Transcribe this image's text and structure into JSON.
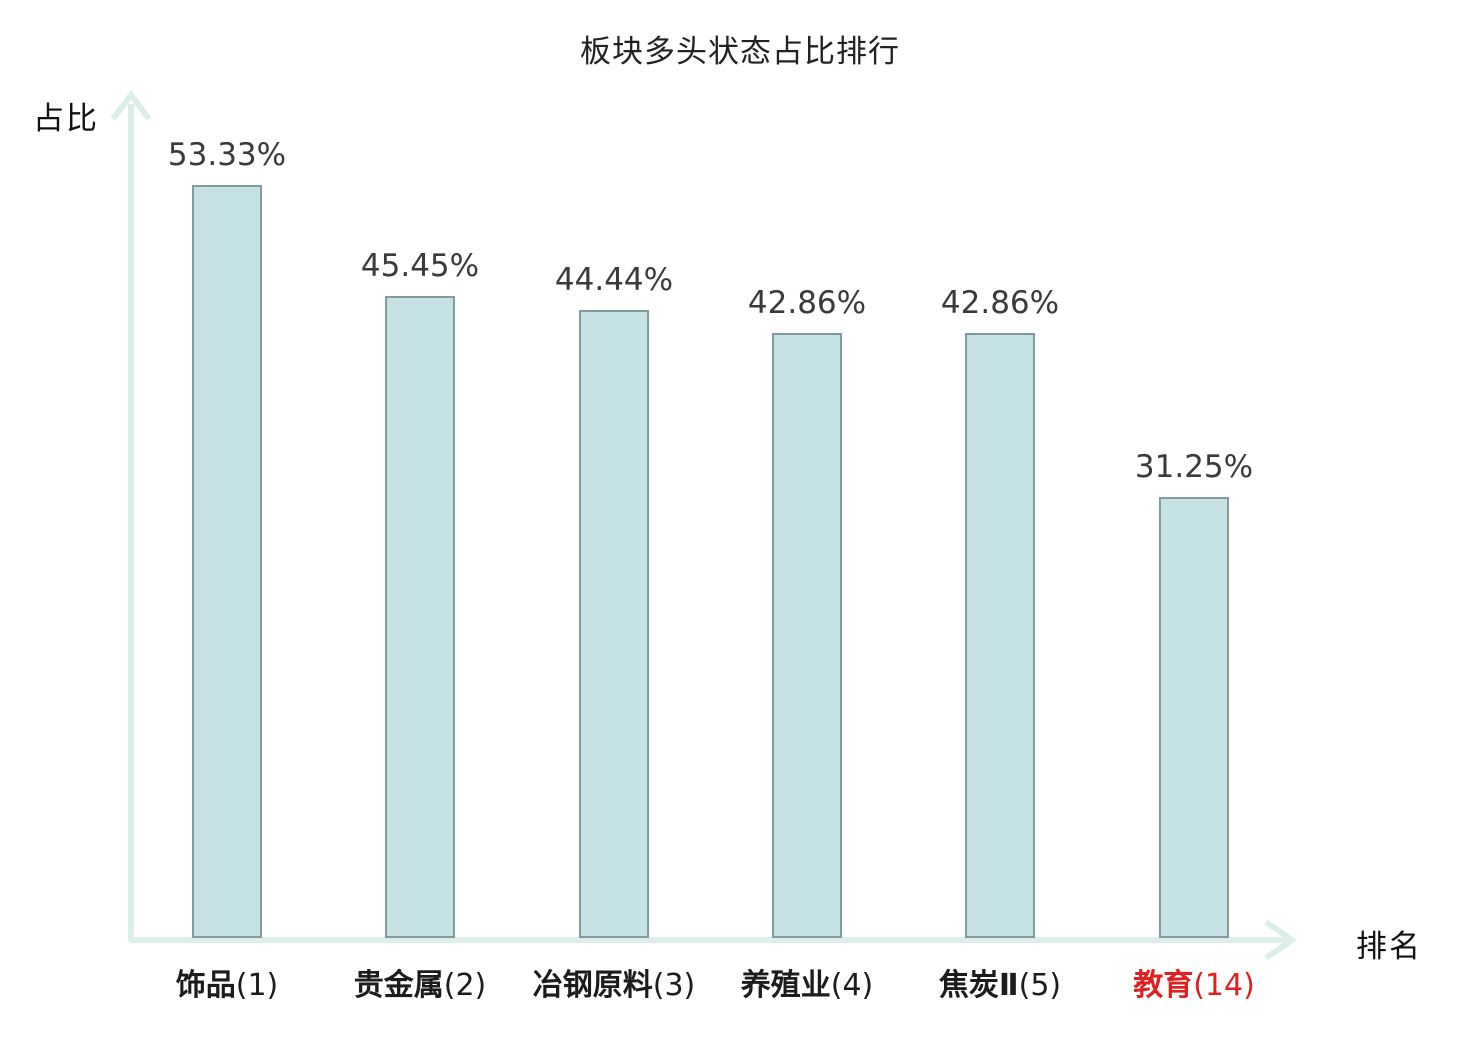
{
  "chart_data": {
    "type": "bar",
    "title": "板块多头状态占比排行",
    "xlabel": "排名",
    "ylabel": "占比",
    "ylim": [
      0,
      60
    ],
    "grid": false,
    "legend": false,
    "categories": [
      "饰品(1)",
      "贵金属(2)",
      "冶钢原料(3)",
      "养殖业(4)",
      "焦炭Ⅱ(5)",
      "教育(14)"
    ],
    "values": [
      53.33,
      45.45,
      44.44,
      42.86,
      42.86,
      31.25
    ],
    "bars": [
      {
        "name": "饰品",
        "rank": "(1)",
        "value": 53.33,
        "value_label": "53.33%",
        "highlight": false
      },
      {
        "name": "贵金属",
        "rank": "(2)",
        "value": 45.45,
        "value_label": "45.45%",
        "highlight": false
      },
      {
        "name": "冶钢原料",
        "rank": "(3)",
        "value": 44.44,
        "value_label": "44.44%",
        "highlight": false
      },
      {
        "name": "养殖业",
        "rank": "(4)",
        "value": 42.86,
        "value_label": "42.86%",
        "highlight": false
      },
      {
        "name": "焦炭Ⅱ",
        "rank": "(5)",
        "value": 42.86,
        "value_label": "42.86%",
        "highlight": false
      },
      {
        "name": "教育",
        "rank": "(14)",
        "value": 31.25,
        "value_label": "31.25%",
        "highlight": true
      }
    ]
  },
  "colors": {
    "background": "#ffffff",
    "bar_fill": "#c7e2e5",
    "bar_border": "#829b9e",
    "axis": "#dbeeea",
    "value_text": "#3a3a3a",
    "category_text": "#1c1c1c",
    "highlight_text": "#e02020"
  }
}
